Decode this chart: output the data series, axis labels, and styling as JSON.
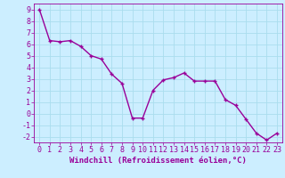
{
  "x": [
    0,
    1,
    2,
    3,
    4,
    5,
    6,
    7,
    8,
    9,
    10,
    11,
    12,
    13,
    14,
    15,
    16,
    17,
    18,
    19,
    20,
    21,
    22,
    23
  ],
  "y": [
    9,
    6.3,
    6.2,
    6.3,
    5.8,
    5.0,
    4.7,
    3.4,
    2.6,
    -0.4,
    -0.4,
    2.0,
    2.9,
    3.1,
    3.5,
    2.8,
    2.8,
    2.8,
    1.2,
    0.7,
    -0.5,
    -1.7,
    -2.3,
    -1.7
  ],
  "line_color": "#990099",
  "marker": "+",
  "marker_size": 3.5,
  "line_width": 1.0,
  "xlabel": "Windchill (Refroidissement éolien,°C)",
  "xlim": [
    -0.5,
    23.5
  ],
  "ylim": [
    -2.5,
    9.5
  ],
  "yticks": [
    -2,
    -1,
    0,
    1,
    2,
    3,
    4,
    5,
    6,
    7,
    8,
    9
  ],
  "xticks": [
    0,
    1,
    2,
    3,
    4,
    5,
    6,
    7,
    8,
    9,
    10,
    11,
    12,
    13,
    14,
    15,
    16,
    17,
    18,
    19,
    20,
    21,
    22,
    23
  ],
  "bg_color": "#cceeff",
  "grid_color": "#aaddee",
  "tick_label_color": "#990099",
  "axis_color": "#990099",
  "xlabel_color": "#990099",
  "xlabel_fontsize": 6.5,
  "tick_fontsize": 6
}
